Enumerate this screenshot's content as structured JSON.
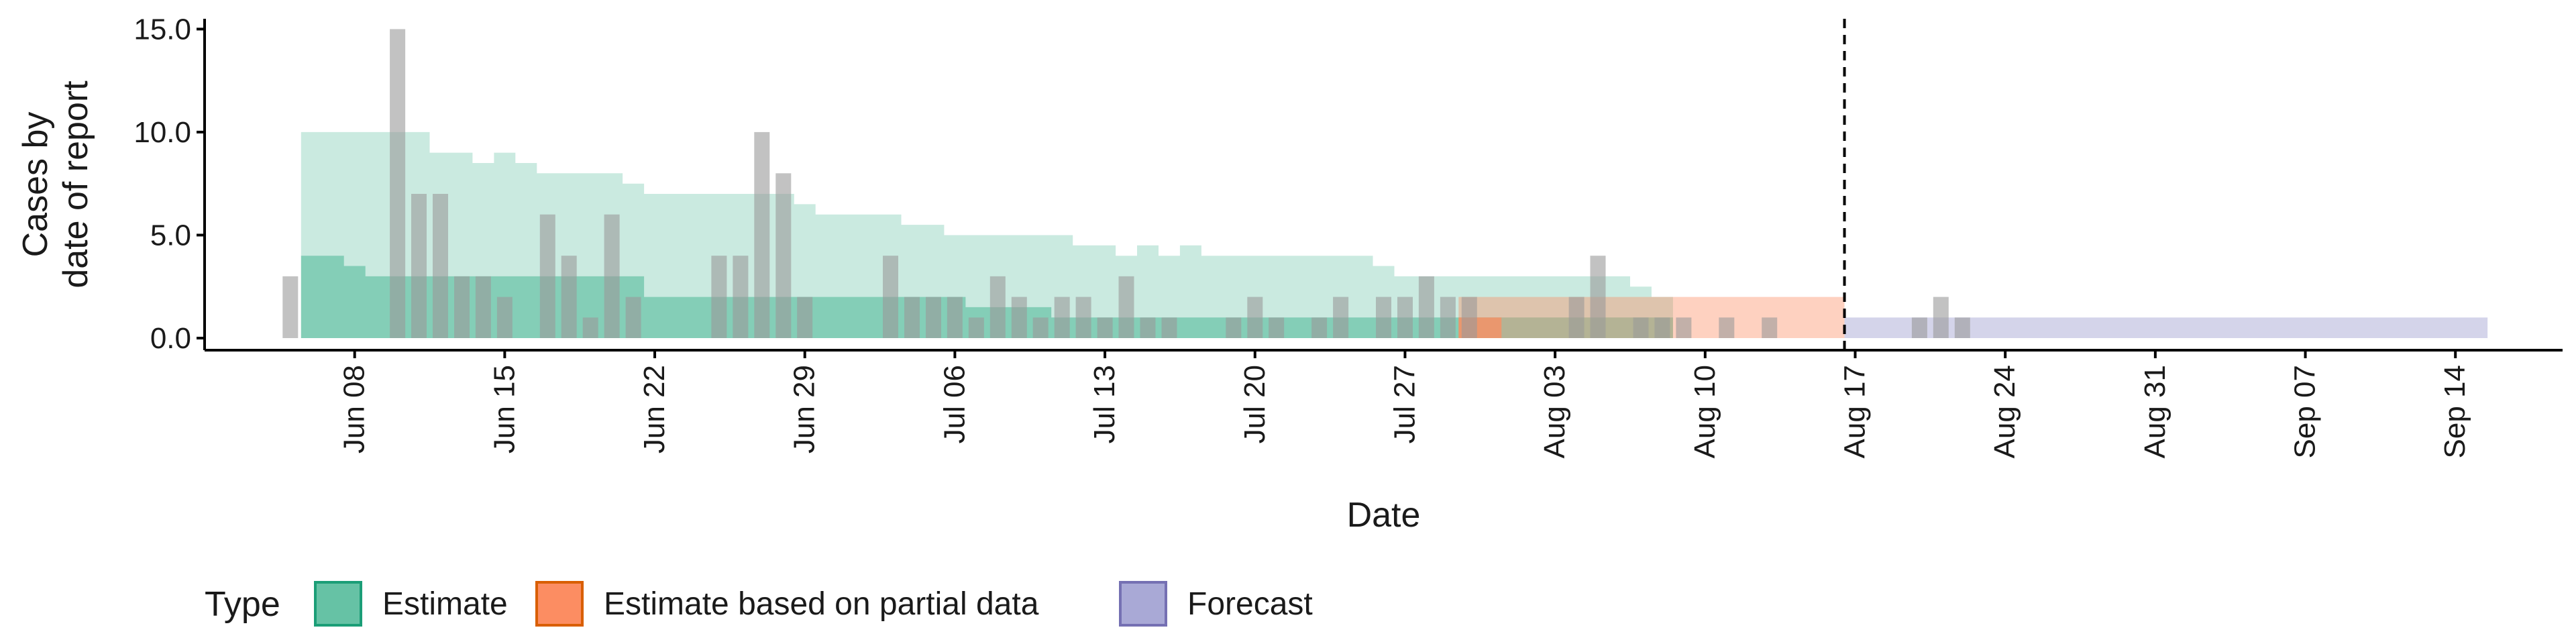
{
  "chart_data": {
    "type": "area",
    "xlabel": "Date",
    "ylabel_lines": [
      "Cases by",
      "date of report"
    ],
    "ylim": [
      0,
      15.5
    ],
    "y_ticks": [
      0,
      5,
      10,
      15
    ],
    "y_tick_labels": [
      "0.0",
      "5.0",
      "10.0",
      "15.0"
    ],
    "x_ticks": [
      "2020-06-08",
      "2020-06-15",
      "2020-06-22",
      "2020-06-29",
      "2020-07-06",
      "2020-07-13",
      "2020-07-20",
      "2020-07-27",
      "2020-08-03",
      "2020-08-10",
      "2020-08-17",
      "2020-08-24",
      "2020-08-31",
      "2020-09-07",
      "2020-09-14"
    ],
    "x_tick_labels": [
      "Jun 08",
      "Jun 15",
      "Jun 22",
      "Jun 29",
      "Jul 06",
      "Jul 13",
      "Jul 20",
      "Jul 27",
      "Aug 03",
      "Aug 10",
      "Aug 17",
      "Aug 24",
      "Aug 31",
      "Sep 07",
      "Sep 14"
    ],
    "xlim": [
      "2020-06-01",
      "2020-09-19"
    ],
    "vline_date": "2020-08-16",
    "colors": {
      "estimate": "#66C2A5",
      "estimate_border": "#1B9E77",
      "partial": "#FC8D62",
      "partial_border": "#D95F02",
      "forecast": "#A9A9D6",
      "forecast_border": "#7570B3",
      "observed": "#999999"
    },
    "observed_cases": {
      "start_date": "2020-06-05",
      "values": [
        3,
        0,
        0,
        0,
        0,
        15,
        7,
        7,
        3,
        3,
        2,
        0,
        6,
        4,
        1,
        6,
        2,
        0,
        0,
        0,
        4,
        4,
        10,
        8,
        2,
        0,
        0,
        0,
        4,
        2,
        2,
        2,
        1,
        3,
        2,
        1,
        2,
        2,
        1,
        3,
        1,
        1,
        0,
        0,
        1,
        2,
        1,
        0,
        1,
        2,
        0,
        2,
        2,
        3,
        2,
        2,
        0,
        0,
        0,
        0,
        2,
        4,
        0,
        1,
        1,
        1,
        0,
        1,
        0,
        1,
        0,
        0,
        0,
        0,
        0,
        0,
        1,
        2,
        1
      ]
    },
    "estimate": {
      "start_date": "2020-06-06",
      "upper90": [
        10,
        10,
        10,
        10,
        10,
        10,
        9,
        9,
        8.5,
        9,
        8.5,
        8,
        8,
        8,
        8,
        7.5,
        7,
        7,
        7,
        7,
        7,
        7,
        7,
        6.5,
        6,
        6,
        6,
        6,
        5.5,
        5.5,
        5,
        5,
        5,
        5,
        5,
        5,
        4.5,
        4.5,
        4,
        4.5,
        4,
        4.5,
        4,
        4,
        4,
        4,
        4,
        4,
        4,
        4,
        3.5,
        3,
        3,
        3,
        3,
        3,
        3,
        3,
        3,
        3,
        3,
        3,
        2.5,
        2
      ],
      "upper50": [
        4,
        4,
        3.5,
        3,
        3,
        3,
        3,
        3,
        3,
        3,
        3,
        3,
        3,
        3,
        3,
        3,
        2,
        2,
        2,
        2,
        2,
        2,
        2,
        2,
        2,
        2,
        2,
        2,
        2,
        2,
        2,
        1.5,
        1.5,
        1.5,
        1.5,
        1,
        1,
        1,
        1,
        1,
        1,
        1,
        1,
        1,
        1,
        1,
        1,
        1,
        1,
        1,
        1,
        1,
        1,
        1,
        1,
        1,
        1,
        1,
        1,
        1,
        1,
        1,
        1,
        1
      ]
    },
    "partial": {
      "start_date": "2020-07-30",
      "upper90": [
        2,
        2,
        2,
        2,
        2,
        2,
        2,
        2,
        2,
        2,
        2,
        2,
        2,
        2,
        2,
        2,
        2,
        2
      ],
      "upper50": [
        1,
        1,
        0,
        0,
        0,
        0,
        0,
        0,
        0,
        0,
        0,
        0,
        0,
        0,
        0,
        0,
        0,
        0
      ]
    },
    "forecast": {
      "start_date": "2020-08-17",
      "end_date": "2020-09-15",
      "upper90": 1,
      "upper50": 0
    },
    "legend": {
      "title": "Type",
      "position": "bottom-left",
      "items": [
        {
          "key": "estimate",
          "label": "Estimate"
        },
        {
          "key": "partial",
          "label": "Estimate based on partial data"
        },
        {
          "key": "forecast",
          "label": "Forecast"
        }
      ]
    }
  }
}
